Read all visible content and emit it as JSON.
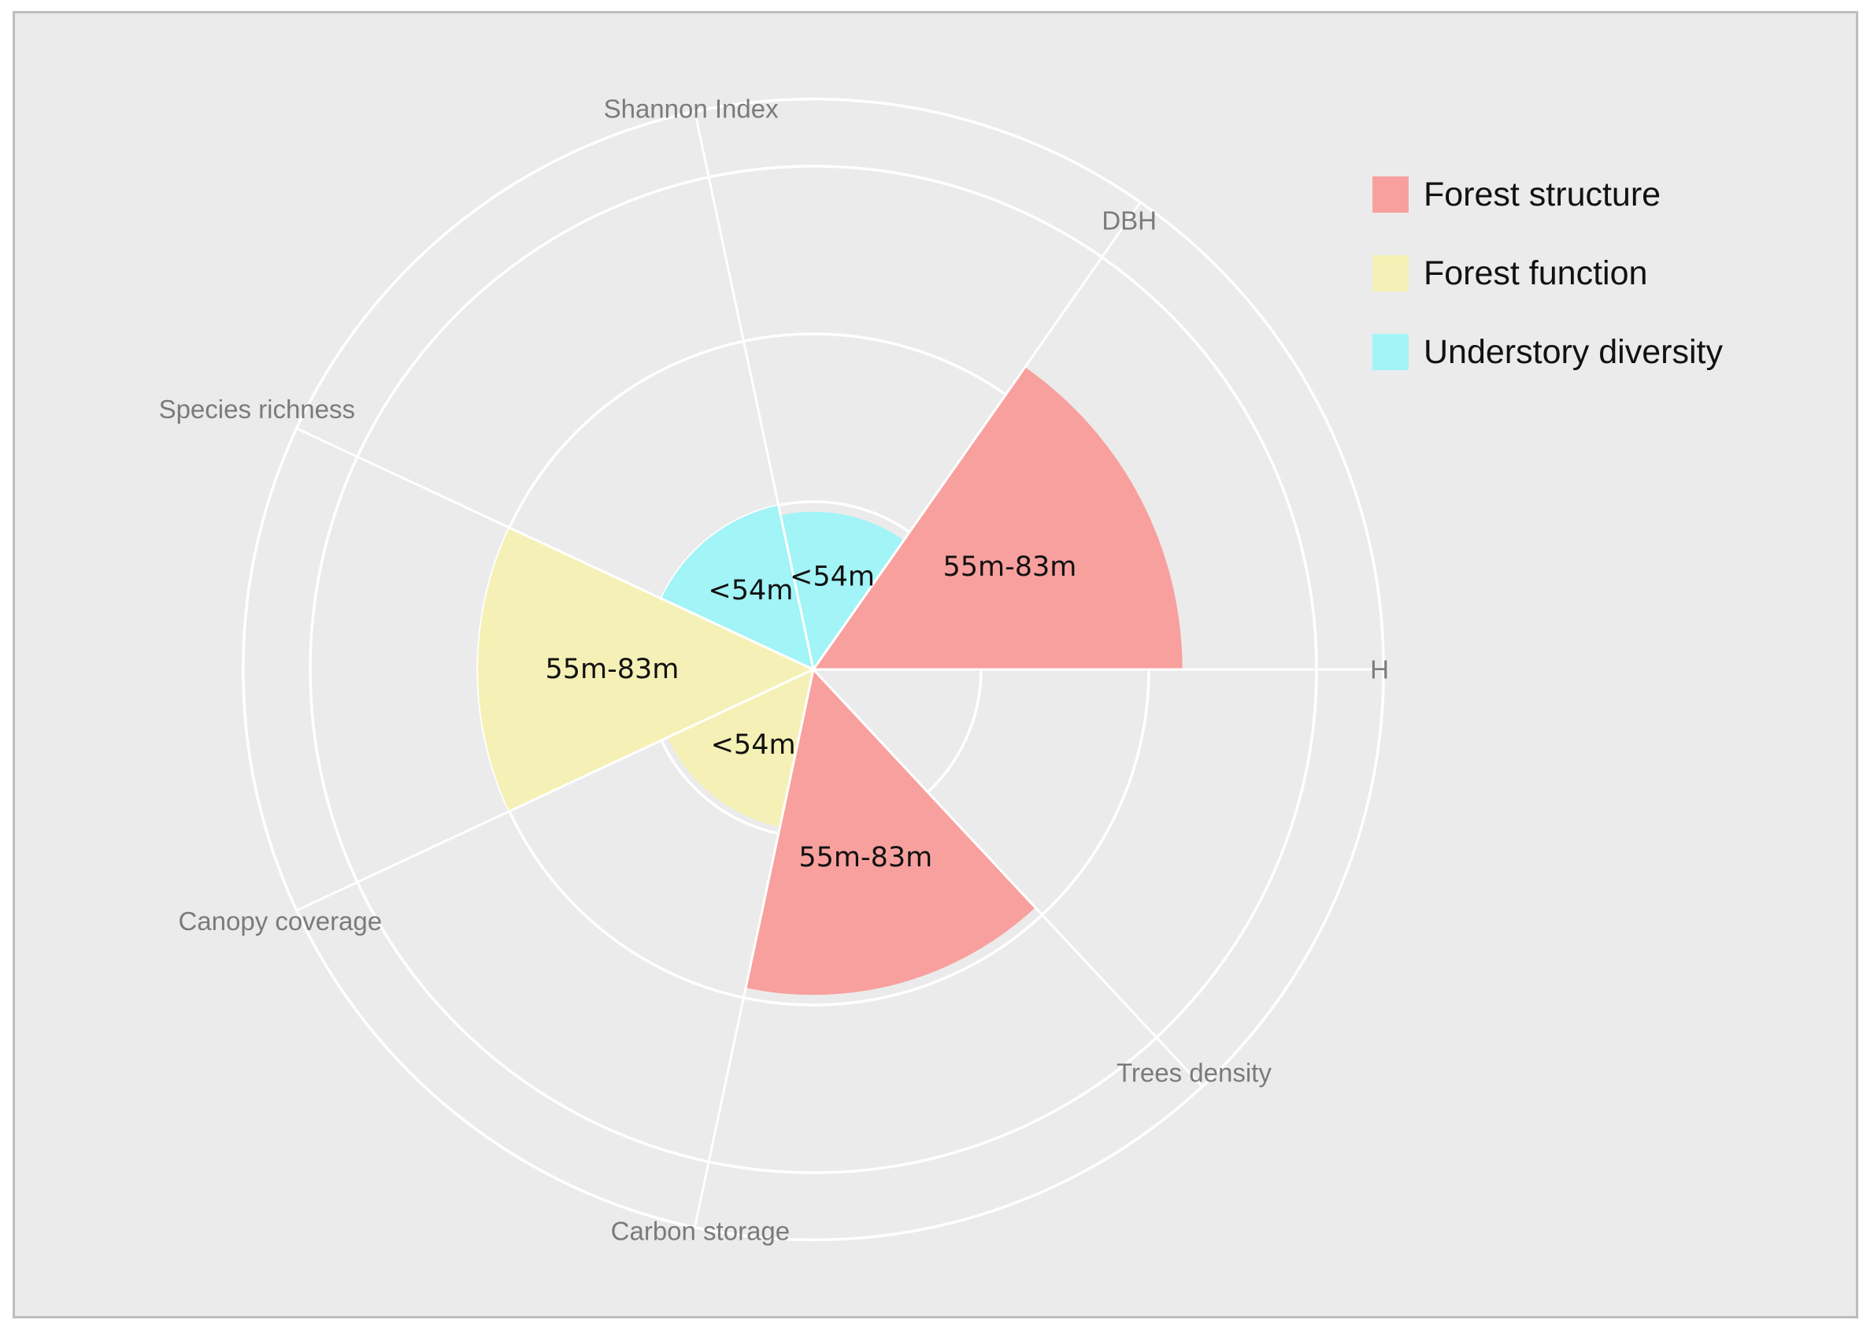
{
  "chart_data": {
    "type": "polar-bar",
    "title": "",
    "axes": [
      "H",
      "DBH",
      "Shannon Index",
      "Species richness",
      "Canopy coverage",
      "Carbon storage",
      "Trees density"
    ],
    "radial_grid": [
      0.5,
      1.0,
      1.5,
      1.7
    ],
    "bars": [
      {
        "between": [
          "H",
          "DBH"
        ],
        "value": 1.1,
        "label": "55m-83m",
        "group": "Forest structure"
      },
      {
        "between": [
          "DBH",
          "Shannon Index"
        ],
        "value": 0.47,
        "label": "<54m",
        "group": "Understory diversity"
      },
      {
        "between": [
          "Shannon Index",
          "Species richness"
        ],
        "value": 0.5,
        "label": "<54m",
        "group": "Understory diversity"
      },
      {
        "between": [
          "Species richness",
          "Canopy coverage"
        ],
        "value": 1.0,
        "label": "55m-83m",
        "group": "Forest function"
      },
      {
        "between": [
          "Canopy coverage",
          "Carbon storage"
        ],
        "value": 0.48,
        "label": "<54m",
        "group": "Forest function"
      },
      {
        "between": [
          "Carbon storage",
          "Trees density"
        ],
        "value": 0.97,
        "label": "55m-83m",
        "group": "Forest structure"
      }
    ],
    "legend": {
      "position": "top-right",
      "entries": [
        {
          "name": "Forest structure",
          "color": "#f8a09e"
        },
        {
          "name": "Forest function",
          "color": "#f5f1b6"
        },
        {
          "name": "Understory diversity",
          "color": "#a2f4f6"
        }
      ]
    },
    "grid": true,
    "background_color": "#ebebeb",
    "grid_color": "#ffffff"
  }
}
